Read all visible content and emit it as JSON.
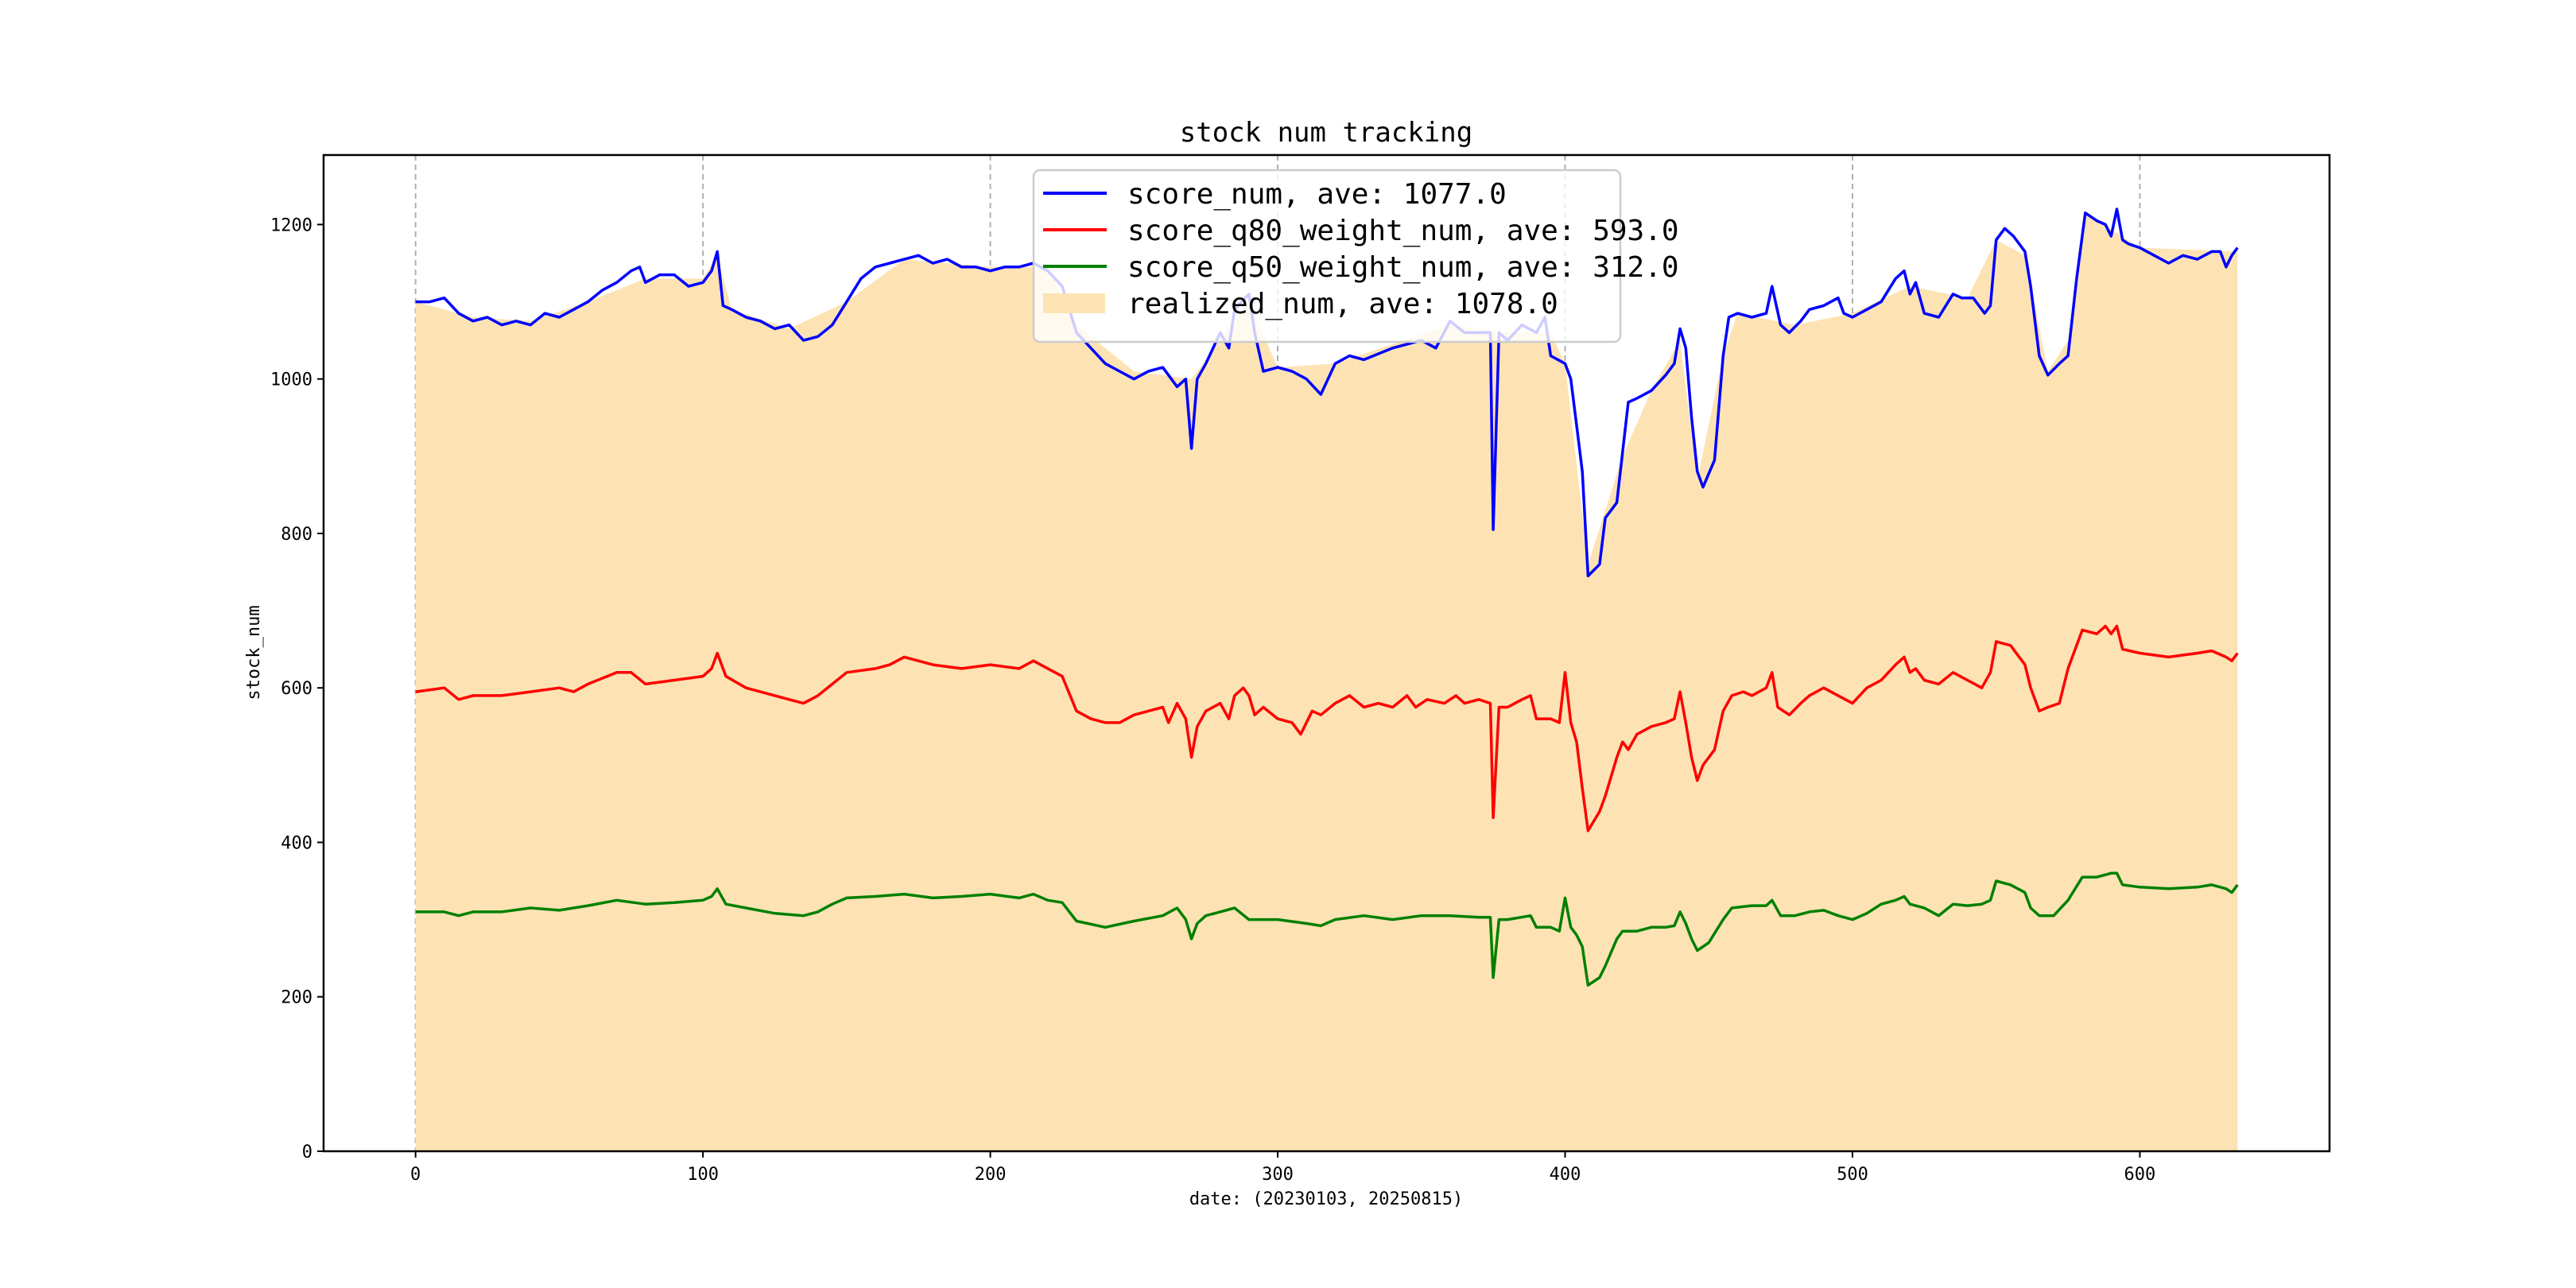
{
  "chart_data": {
    "type": "line",
    "title": "stock num tracking",
    "xlabel": "date: (20230103, 20250815)",
    "ylabel": "stock_num",
    "xlim": [
      -32,
      666
    ],
    "ylim": [
      0,
      1290
    ],
    "xticks": [
      0,
      100,
      200,
      300,
      400,
      500,
      600
    ],
    "yticks": [
      0,
      200,
      400,
      600,
      800,
      1000,
      1200
    ],
    "grid": "vertical dashed at x ticks",
    "legend_position": "top-center",
    "colors": {
      "score": "#0000ff",
      "q80": "#ff0000",
      "q50": "#008000",
      "realized": "#fde3b4"
    },
    "series": [
      {
        "name": "score_num",
        "legend": "score_num, ave: 1077.0",
        "kind": "line",
        "x": [
          0,
          5,
          10,
          15,
          20,
          25,
          30,
          35,
          40,
          45,
          50,
          55,
          60,
          65,
          70,
          75,
          78,
          80,
          85,
          90,
          95,
          100,
          103,
          105,
          107,
          110,
          115,
          120,
          125,
          130,
          135,
          140,
          145,
          150,
          155,
          160,
          165,
          170,
          175,
          180,
          185,
          190,
          195,
          200,
          205,
          210,
          215,
          220,
          225,
          230,
          235,
          240,
          245,
          250,
          255,
          260,
          265,
          268,
          270,
          272,
          275,
          280,
          283,
          285,
          290,
          292,
          295,
          300,
          305,
          310,
          315,
          320,
          325,
          330,
          340,
          350,
          355,
          360,
          365,
          370,
          374,
          375,
          377,
          380,
          385,
          390,
          393,
          395,
          400,
          402,
          404,
          406,
          408,
          412,
          414,
          418,
          422,
          425,
          430,
          435,
          438,
          440,
          442,
          444,
          446,
          448,
          452,
          455,
          457,
          460,
          465,
          470,
          472,
          475,
          478,
          482,
          485,
          490,
          495,
          497,
          500,
          505,
          510,
          515,
          518,
          520,
          522,
          525,
          530,
          535,
          538,
          542,
          546,
          548,
          550,
          553,
          556,
          560,
          562,
          565,
          568,
          572,
          575,
          578,
          581,
          585,
          588,
          590,
          592,
          594,
          596,
          600,
          605,
          610,
          615,
          620,
          625,
          628,
          630,
          632,
          634
        ],
        "y": [
          1100,
          1100,
          1105,
          1085,
          1075,
          1080,
          1070,
          1075,
          1070,
          1085,
          1080,
          1090,
          1100,
          1115,
          1125,
          1140,
          1145,
          1125,
          1135,
          1135,
          1120,
          1125,
          1140,
          1165,
          1095,
          1090,
          1080,
          1075,
          1065,
          1070,
          1050,
          1055,
          1070,
          1100,
          1130,
          1145,
          1150,
          1155,
          1160,
          1150,
          1155,
          1145,
          1145,
          1140,
          1145,
          1145,
          1150,
          1140,
          1120,
          1060,
          1040,
          1020,
          1010,
          1000,
          1010,
          1015,
          990,
          1000,
          910,
          1000,
          1020,
          1060,
          1040,
          1090,
          1110,
          1060,
          1010,
          1015,
          1010,
          1000,
          980,
          1020,
          1030,
          1025,
          1040,
          1050,
          1040,
          1075,
          1060,
          1060,
          1060,
          805,
          1060,
          1050,
          1070,
          1060,
          1080,
          1030,
          1020,
          1000,
          940,
          880,
          745,
          760,
          820,
          840,
          970,
          975,
          985,
          1005,
          1020,
          1065,
          1040,
          950,
          880,
          860,
          895,
          1030,
          1080,
          1085,
          1080,
          1085,
          1120,
          1070,
          1060,
          1075,
          1090,
          1095,
          1105,
          1085,
          1080,
          1090,
          1100,
          1130,
          1140,
          1110,
          1125,
          1085,
          1080,
          1110,
          1105,
          1105,
          1085,
          1095,
          1180,
          1195,
          1185,
          1165,
          1120,
          1030,
          1005,
          1020,
          1030,
          1130,
          1215,
          1205,
          1200,
          1185,
          1220,
          1180,
          1175,
          1170,
          1160,
          1150,
          1160,
          1155,
          1165,
          1165,
          1145,
          1160,
          1170
        ]
      },
      {
        "name": "score_q80_weight_num",
        "legend": "score_q80_weight_num, ave: 593.0",
        "kind": "line",
        "x": [
          0,
          10,
          15,
          20,
          30,
          40,
          50,
          55,
          60,
          70,
          75,
          80,
          90,
          100,
          103,
          105,
          108,
          115,
          120,
          130,
          135,
          140,
          145,
          150,
          160,
          165,
          170,
          180,
          190,
          200,
          210,
          215,
          220,
          225,
          230,
          235,
          240,
          245,
          250,
          255,
          260,
          262,
          265,
          268,
          270,
          272,
          275,
          280,
          283,
          285,
          288,
          290,
          292,
          295,
          300,
          305,
          308,
          312,
          315,
          320,
          325,
          330,
          335,
          340,
          345,
          348,
          352,
          358,
          362,
          365,
          370,
          374,
          375,
          377,
          380,
          385,
          388,
          390,
          395,
          398,
          400,
          402,
          404,
          406,
          408,
          412,
          414,
          418,
          420,
          422,
          425,
          430,
          435,
          438,
          440,
          442,
          444,
          446,
          448,
          452,
          455,
          458,
          462,
          465,
          470,
          472,
          474,
          478,
          482,
          485,
          490,
          495,
          500,
          505,
          510,
          515,
          518,
          520,
          522,
          525,
          530,
          535,
          540,
          545,
          548,
          550,
          555,
          560,
          562,
          565,
          568,
          572,
          575,
          580,
          585,
          588,
          590,
          592,
          594,
          600,
          610,
          620,
          625,
          630,
          632,
          634
        ],
        "y": [
          595,
          600,
          585,
          590,
          590,
          595,
          600,
          595,
          605,
          620,
          620,
          605,
          610,
          615,
          625,
          645,
          615,
          600,
          595,
          585,
          580,
          590,
          605,
          620,
          625,
          630,
          640,
          630,
          625,
          630,
          625,
          635,
          625,
          615,
          570,
          560,
          555,
          555,
          565,
          570,
          575,
          555,
          580,
          560,
          510,
          550,
          570,
          580,
          560,
          590,
          600,
          590,
          565,
          575,
          560,
          555,
          540,
          570,
          565,
          580,
          590,
          575,
          580,
          575,
          590,
          575,
          585,
          580,
          590,
          580,
          585,
          580,
          432,
          575,
          575,
          585,
          590,
          560,
          560,
          555,
          620,
          555,
          530,
          470,
          415,
          440,
          460,
          510,
          530,
          520,
          540,
          550,
          555,
          560,
          595,
          555,
          510,
          480,
          500,
          520,
          570,
          590,
          595,
          590,
          600,
          620,
          575,
          565,
          580,
          590,
          600,
          590,
          580,
          600,
          610,
          630,
          640,
          620,
          625,
          610,
          605,
          620,
          610,
          600,
          620,
          660,
          655,
          630,
          600,
          570,
          575,
          580,
          625,
          675,
          670,
          680,
          670,
          680,
          650,
          645,
          640,
          645,
          648,
          640,
          635,
          645
        ]
      },
      {
        "name": "score_q50_weight_num",
        "legend": "score_q50_weight_num, ave: 312.0",
        "kind": "line",
        "x": [
          0,
          10,
          15,
          20,
          30,
          40,
          50,
          60,
          70,
          80,
          90,
          100,
          103,
          105,
          108,
          115,
          125,
          135,
          140,
          145,
          150,
          160,
          170,
          180,
          190,
          200,
          210,
          215,
          220,
          225,
          230,
          240,
          250,
          260,
          265,
          268,
          270,
          272,
          275,
          280,
          285,
          290,
          295,
          300,
          310,
          315,
          320,
          330,
          340,
          350,
          360,
          370,
          374,
          375,
          377,
          380,
          388,
          390,
          395,
          398,
          400,
          402,
          404,
          406,
          408,
          412,
          414,
          418,
          420,
          425,
          430,
          435,
          438,
          440,
          442,
          444,
          446,
          450,
          455,
          458,
          465,
          470,
          472,
          475,
          480,
          485,
          490,
          495,
          500,
          505,
          510,
          515,
          518,
          520,
          525,
          530,
          535,
          540,
          545,
          548,
          550,
          555,
          560,
          562,
          565,
          570,
          575,
          580,
          585,
          590,
          592,
          594,
          600,
          610,
          620,
          625,
          630,
          632,
          634
        ],
        "y": [
          310,
          310,
          305,
          310,
          310,
          315,
          312,
          318,
          325,
          320,
          322,
          325,
          330,
          340,
          320,
          315,
          308,
          305,
          310,
          320,
          328,
          330,
          333,
          328,
          330,
          333,
          328,
          333,
          325,
          322,
          298,
          290,
          298,
          305,
          315,
          300,
          275,
          295,
          305,
          310,
          315,
          300,
          300,
          300,
          295,
          292,
          300,
          305,
          300,
          305,
          305,
          303,
          303,
          225,
          300,
          300,
          305,
          290,
          290,
          285,
          328,
          290,
          280,
          265,
          215,
          225,
          240,
          275,
          285,
          285,
          290,
          290,
          292,
          310,
          295,
          275,
          260,
          270,
          300,
          315,
          318,
          318,
          325,
          305,
          305,
          310,
          312,
          305,
          300,
          308,
          320,
          325,
          330,
          320,
          315,
          305,
          320,
          318,
          320,
          325,
          350,
          345,
          335,
          315,
          305,
          305,
          325,
          355,
          355,
          360,
          360,
          345,
          342,
          340,
          342,
          345,
          340,
          335,
          345
        ]
      },
      {
        "name": "realized_num",
        "legend": "realized_num, ave: 1078.0",
        "kind": "area",
        "x": [
          0,
          20,
          40,
          60,
          80,
          100,
          105,
          110,
          130,
          150,
          170,
          200,
          220,
          230,
          250,
          270,
          290,
          300,
          320,
          340,
          360,
          380,
          395,
          400,
          408,
          420,
          430,
          440,
          446,
          455,
          460,
          480,
          500,
          520,
          540,
          550,
          560,
          568,
          575,
          581,
          600,
          634
        ],
        "y": [
          1100,
          1080,
          1075,
          1100,
          1130,
          1130,
          1160,
          1090,
          1065,
          1100,
          1155,
          1145,
          1145,
          1070,
          1010,
          1000,
          1100,
          1015,
          1020,
          1045,
          1070,
          1060,
          1060,
          1020,
          760,
          900,
          985,
          1050,
          870,
          1030,
          1085,
          1070,
          1085,
          1120,
          1105,
          1180,
          1160,
          1010,
          1050,
          1215,
          1170,
          1165
        ]
      }
    ]
  }
}
